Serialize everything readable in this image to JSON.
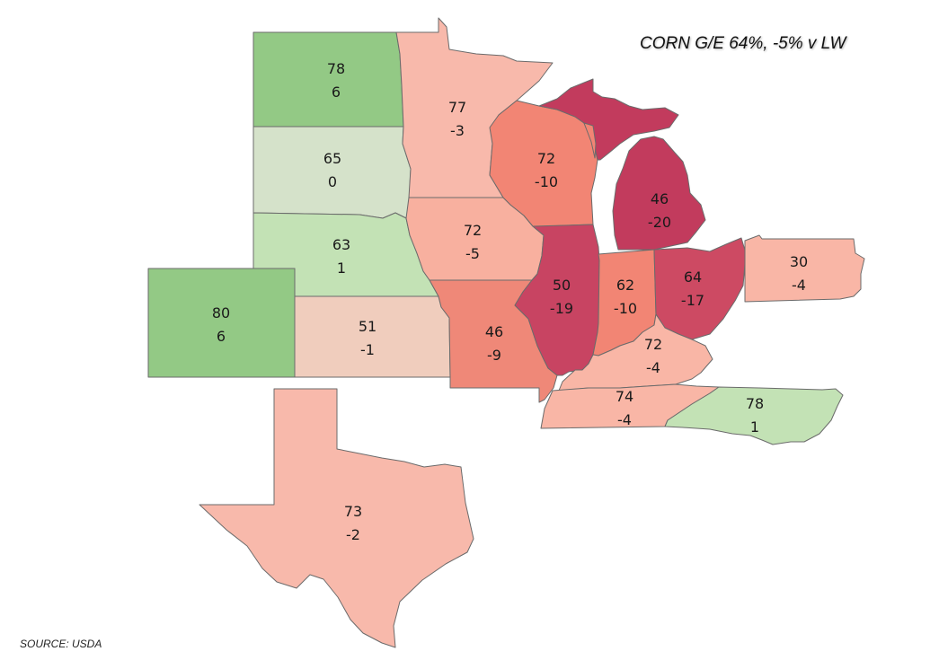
{
  "title": "CORN G/E 64%, -5% v LW",
  "source": "SOURCE: USDA",
  "states": [
    {
      "code": "ND",
      "ge": "78",
      "change": "6",
      "color": "#93c985"
    },
    {
      "code": "SD",
      "ge": "65",
      "change": "0",
      "color": "#d5e2ca"
    },
    {
      "code": "NE",
      "ge": "63",
      "change": "1",
      "color": "#c3e2b5"
    },
    {
      "code": "CO",
      "ge": "80",
      "change": "6",
      "color": "#93c985"
    },
    {
      "code": "KS",
      "ge": "51",
      "change": "-1",
      "color": "#f0cdbd"
    },
    {
      "code": "TX",
      "ge": "73",
      "change": "-2",
      "color": "#f8b9ab"
    },
    {
      "code": "MN",
      "ge": "77",
      "change": "-3",
      "color": "#f8b9ab"
    },
    {
      "code": "IA",
      "ge": "72",
      "change": "-5",
      "color": "#f8b09f"
    },
    {
      "code": "MO",
      "ge": "46",
      "change": "-9",
      "color": "#ef8878"
    },
    {
      "code": "WI",
      "ge": "72",
      "change": "-10",
      "color": "#f28574"
    },
    {
      "code": "IL",
      "ge": "50",
      "change": "-19",
      "color": "#c84462"
    },
    {
      "code": "MI",
      "ge": "46",
      "change": "-20",
      "color": "#c23b5d"
    },
    {
      "code": "IN",
      "ge": "62",
      "change": "-10",
      "color": "#f28574"
    },
    {
      "code": "OH",
      "ge": "64",
      "change": "-17",
      "color": "#cd4a63"
    },
    {
      "code": "KY",
      "ge": "72",
      "change": "-4",
      "color": "#f9b6a6"
    },
    {
      "code": "TN",
      "ge": "74",
      "change": "-4",
      "color": "#f9b6a6"
    },
    {
      "code": "NC",
      "ge": "78",
      "change": "1",
      "color": "#c3e2b5"
    },
    {
      "code": "PA",
      "ge": "30",
      "change": "-4",
      "color": "#f9b6a6"
    }
  ]
}
